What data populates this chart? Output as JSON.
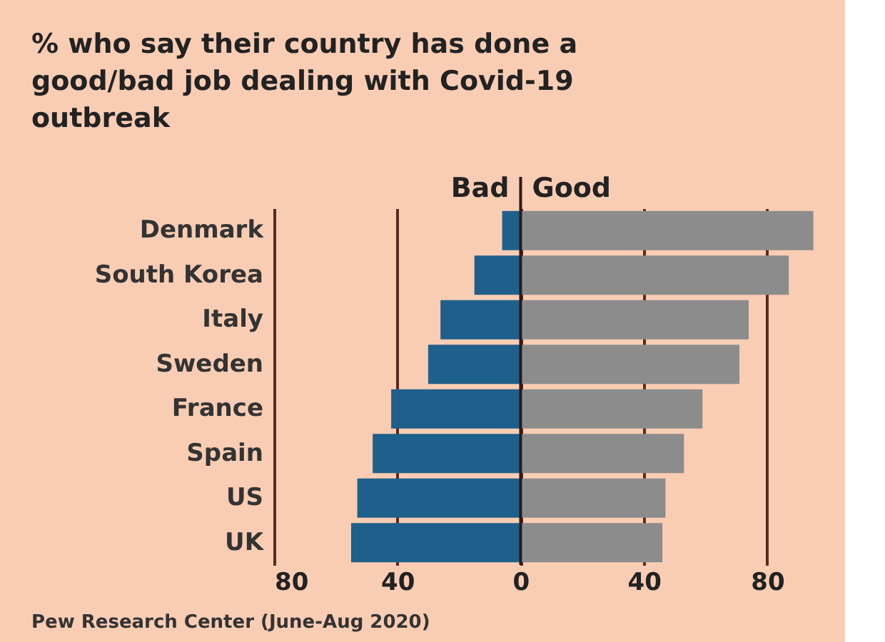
{
  "chart_data": {
    "type": "bar",
    "orientation": "horizontal",
    "title": "% who say their country has done a good/bad job dealing with Covid-19 outbreak",
    "categories": [
      "Denmark",
      "South Korea",
      "Italy",
      "Sweden",
      "France",
      "Spain",
      "US",
      "UK"
    ],
    "series": [
      {
        "name": "Bad",
        "color": "#1f5f8b",
        "values": [
          -6,
          -15,
          -26,
          -30,
          -42,
          -48,
          -53,
          -55
        ]
      },
      {
        "name": "Good",
        "color": "#8c8c8c",
        "values": [
          95,
          87,
          74,
          71,
          59,
          53,
          47,
          46
        ]
      }
    ],
    "xlim": [
      -80,
      96
    ],
    "xticks": [
      {
        "value": -80,
        "label": "80"
      },
      {
        "value": -40,
        "label": "40"
      },
      0,
      40,
      80
    ],
    "grid": "x",
    "legend": false,
    "stacked": true,
    "annotations": [
      "Pew Research Center (June-Aug 2020)"
    ]
  }
}
